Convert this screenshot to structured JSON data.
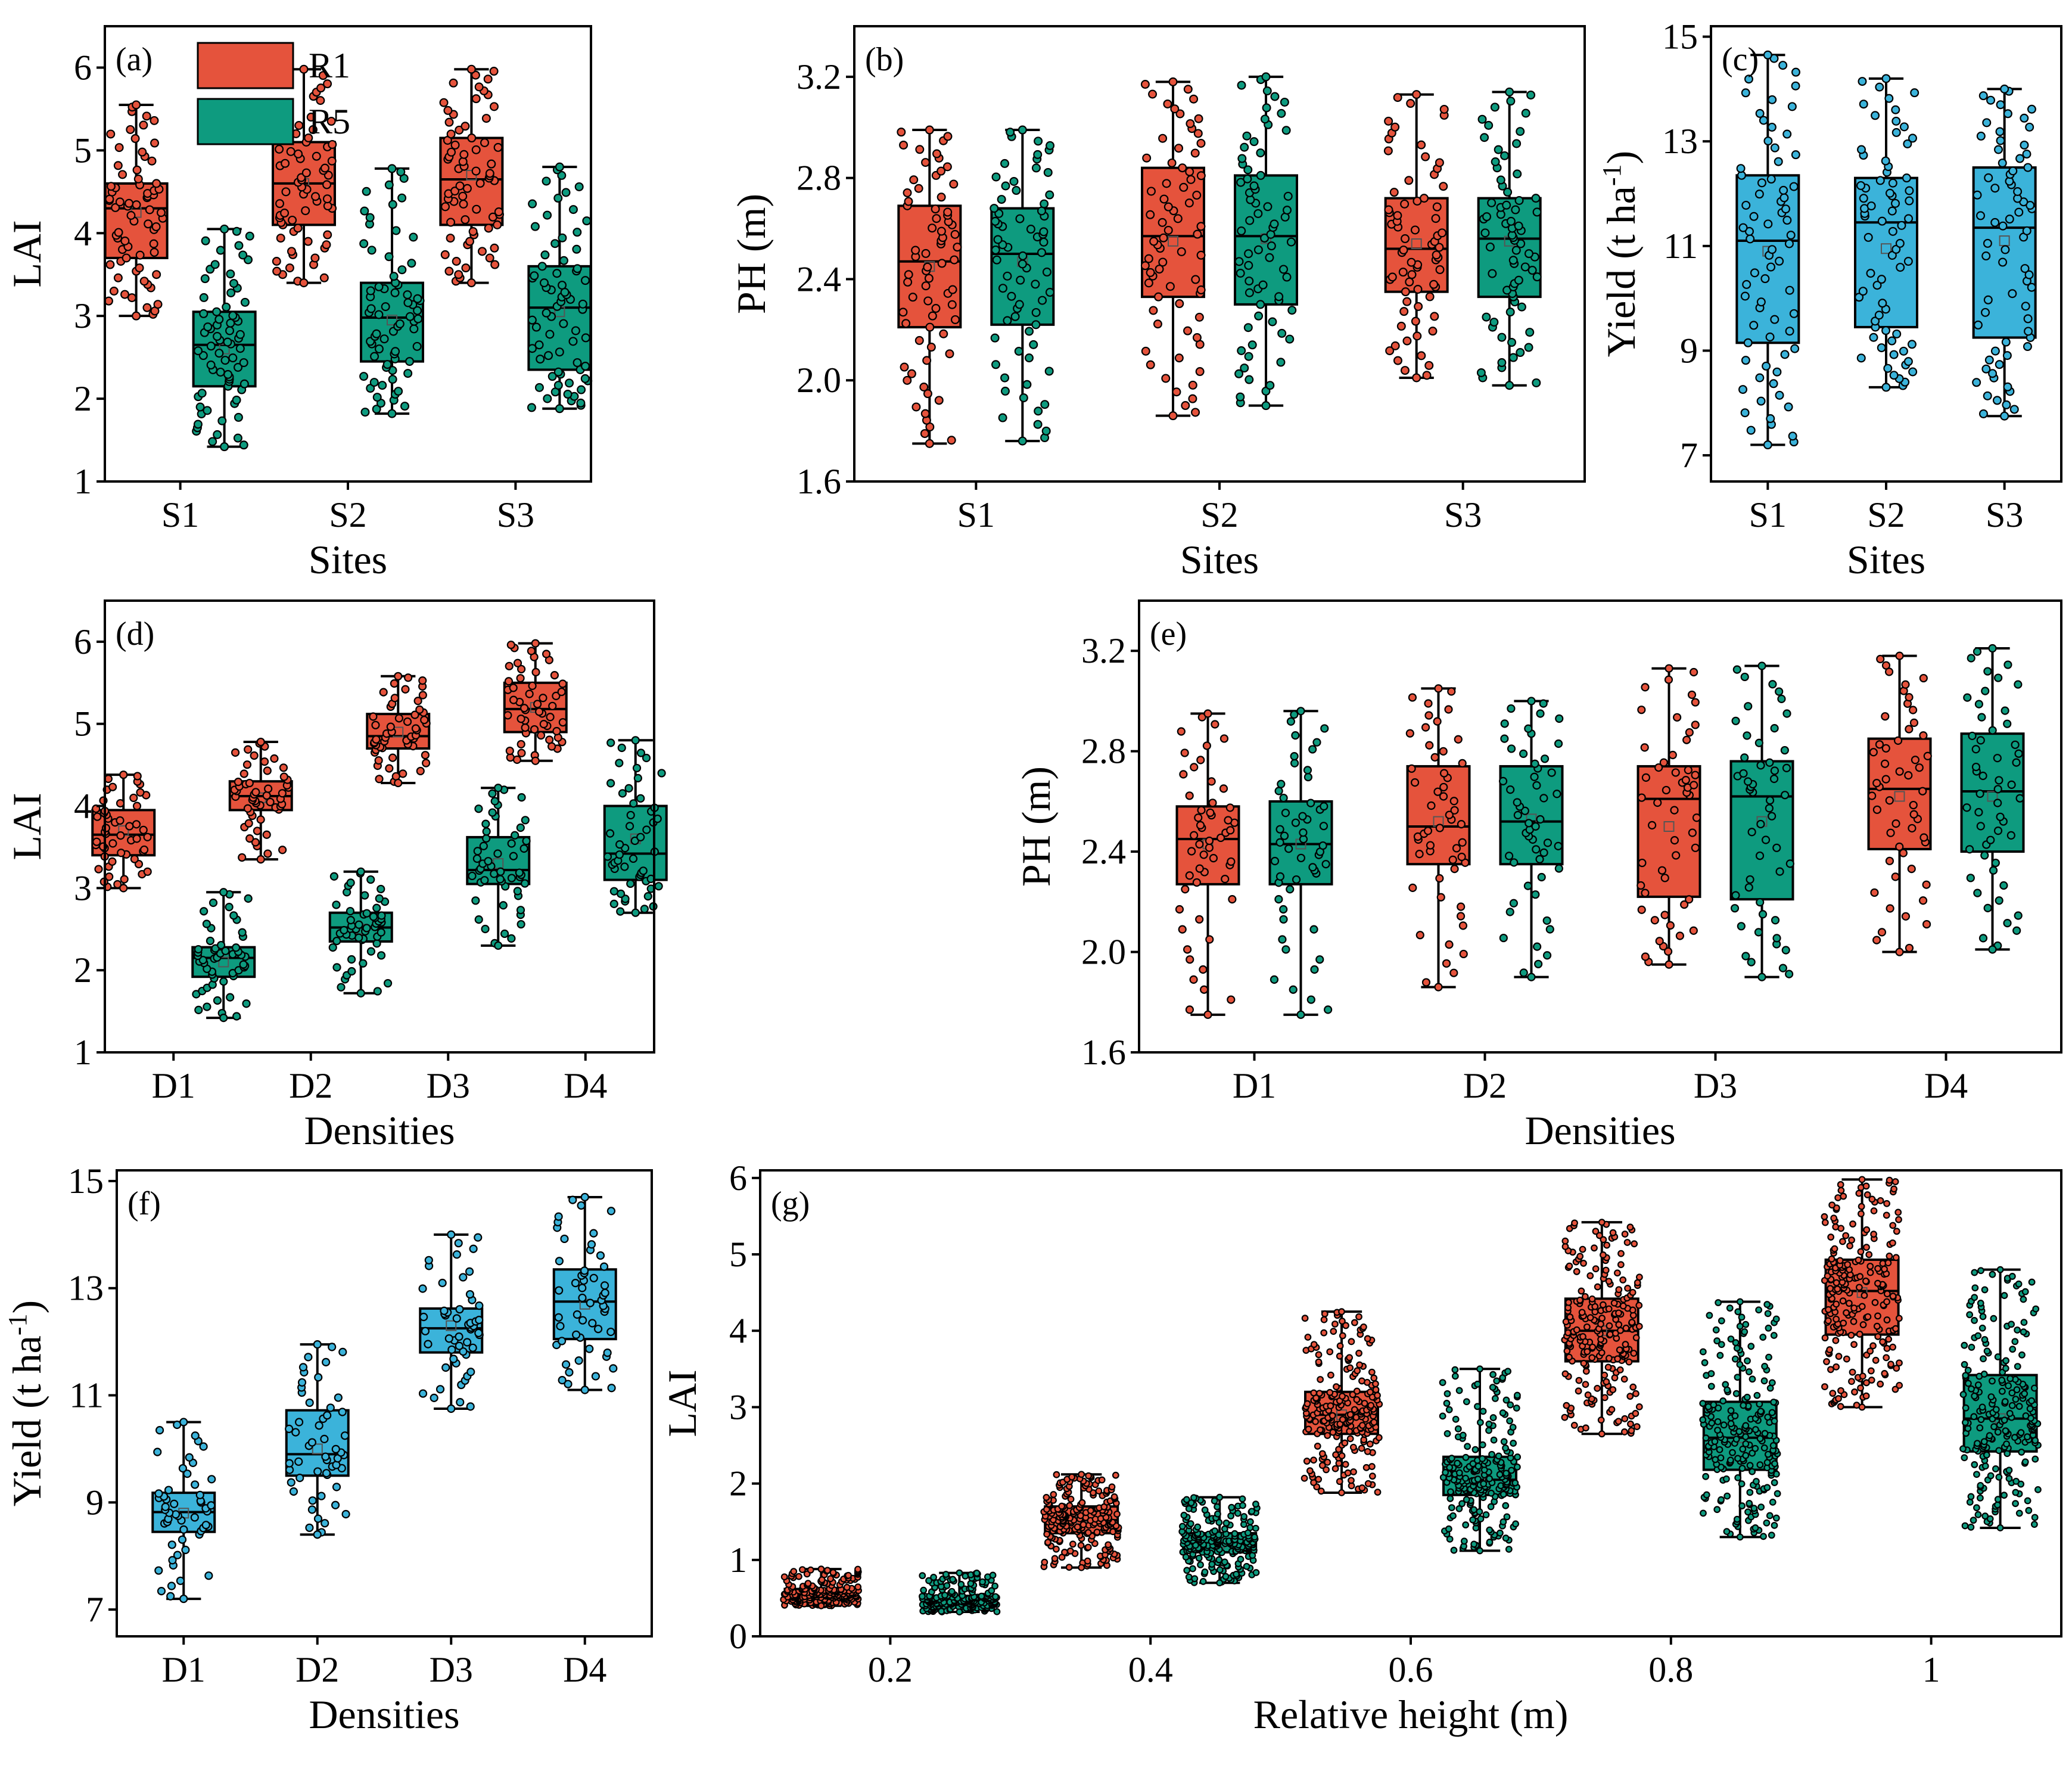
{
  "colors": {
    "R1": "#E5533C",
    "R5": "#0E9B7F",
    "yield": "#3BB3DA",
    "frame": "#000000"
  },
  "legend": {
    "items": [
      {
        "label": "R1",
        "color": "#E5533C"
      },
      {
        "label": "R5",
        "color": "#0E9B7F"
      }
    ]
  },
  "chart_data": [
    {
      "id": "a",
      "panel_label": "(a)",
      "type": "box",
      "xlabel": "Sites",
      "ylabel": "LAI",
      "ylim": [
        1,
        6.5
      ],
      "yticks": [
        1,
        2,
        3,
        4,
        5,
        6
      ],
      "ytick_labels": [
        "1",
        "2",
        "3",
        "4",
        "5",
        "6"
      ],
      "categories": [
        "S1",
        "S2",
        "S3"
      ],
      "n_points": 70,
      "series": [
        {
          "name": "R1",
          "color": "#E5533C",
          "stats": [
            {
              "min": 3.0,
              "q1": 3.7,
              "median": 4.3,
              "mean": 4.25,
              "q3": 4.6,
              "max": 5.55
            },
            {
              "min": 3.4,
              "q1": 4.1,
              "median": 4.6,
              "mean": 4.6,
              "q3": 5.1,
              "max": 5.98
            },
            {
              "min": 3.4,
              "q1": 4.1,
              "median": 4.65,
              "mean": 4.7,
              "q3": 5.15,
              "max": 5.98
            }
          ]
        },
        {
          "name": "R5",
          "color": "#0E9B7F",
          "stats": [
            {
              "min": 1.42,
              "q1": 2.15,
              "median": 2.65,
              "mean": 2.6,
              "q3": 3.05,
              "max": 4.05
            },
            {
              "min": 1.82,
              "q1": 2.45,
              "median": 2.98,
              "mean": 2.95,
              "q3": 3.4,
              "max": 4.78
            },
            {
              "min": 1.88,
              "q1": 2.35,
              "median": 3.1,
              "mean": 3.05,
              "q3": 3.6,
              "max": 4.8
            }
          ]
        }
      ]
    },
    {
      "id": "b",
      "panel_label": "(b)",
      "type": "box",
      "xlabel": "Sites",
      "ylabel": "PH (m)",
      "ylim": [
        1.6,
        3.4
      ],
      "yticks": [
        1.6,
        2.0,
        2.4,
        2.8,
        3.2
      ],
      "ytick_labels": [
        "1.6",
        "2.0",
        "2.4",
        "2.8",
        "3.2"
      ],
      "categories": [
        "S1",
        "S2",
        "S3"
      ],
      "n_points": 70,
      "series": [
        {
          "name": "R1",
          "color": "#E5533C",
          "stats": [
            {
              "min": 1.75,
              "q1": 2.21,
              "median": 2.47,
              "mean": 2.45,
              "q3": 2.69,
              "max": 2.99
            },
            {
              "min": 1.86,
              "q1": 2.33,
              "median": 2.57,
              "mean": 2.55,
              "q3": 2.84,
              "max": 3.18
            },
            {
              "min": 2.01,
              "q1": 2.35,
              "median": 2.52,
              "mean": 2.54,
              "q3": 2.72,
              "max": 3.13
            }
          ]
        },
        {
          "name": "R5",
          "color": "#0E9B7F",
          "stats": [
            {
              "min": 1.76,
              "q1": 2.22,
              "median": 2.5,
              "mean": 2.47,
              "q3": 2.68,
              "max": 2.99
            },
            {
              "min": 1.9,
              "q1": 2.3,
              "median": 2.57,
              "mean": 2.56,
              "q3": 2.81,
              "max": 3.2
            },
            {
              "min": 1.98,
              "q1": 2.33,
              "median": 2.56,
              "mean": 2.55,
              "q3": 2.72,
              "max": 3.14
            }
          ]
        }
      ]
    },
    {
      "id": "c",
      "panel_label": "(c)",
      "type": "box",
      "xlabel": "Sites",
      "ylabel": "Yield (t ha",
      "ylabel_sup": "-1",
      "ylabel_end": ")",
      "ylim": [
        6.5,
        15.2
      ],
      "yticks": [
        7,
        9,
        11,
        13,
        15
      ],
      "ytick_labels": [
        "7",
        "9",
        "11",
        "13",
        "15"
      ],
      "categories": [
        "S1",
        "S2",
        "S3"
      ],
      "n_points": 70,
      "series": [
        {
          "name": "Yield",
          "color": "#3BB3DA",
          "stats": [
            {
              "min": 7.2,
              "q1": 9.15,
              "median": 11.1,
              "mean": 10.9,
              "q3": 12.35,
              "max": 14.65
            },
            {
              "min": 8.3,
              "q1": 9.45,
              "median": 11.45,
              "mean": 10.95,
              "q3": 12.3,
              "max": 14.2
            },
            {
              "min": 7.75,
              "q1": 9.25,
              "median": 11.35,
              "mean": 11.1,
              "q3": 12.5,
              "max": 14.0
            }
          ]
        }
      ]
    },
    {
      "id": "d",
      "panel_label": "(d)",
      "type": "box",
      "xlabel": "Densities",
      "ylabel": "LAI",
      "ylim": [
        1,
        6.5
      ],
      "yticks": [
        1,
        2,
        3,
        4,
        5,
        6
      ],
      "ytick_labels": [
        "1",
        "2",
        "3",
        "4",
        "5",
        "6"
      ],
      "categories": [
        "D1",
        "D2",
        "D3",
        "D4"
      ],
      "n_points": 52,
      "series": [
        {
          "name": "R1",
          "color": "#E5533C",
          "stats": [
            {
              "min": 3.0,
              "q1": 3.4,
              "median": 3.65,
              "mean": 3.7,
              "q3": 3.95,
              "max": 4.38
            },
            {
              "min": 3.35,
              "q1": 3.95,
              "median": 4.12,
              "mean": 4.1,
              "q3": 4.3,
              "max": 4.78
            },
            {
              "min": 4.28,
              "q1": 4.7,
              "median": 4.85,
              "mean": 4.9,
              "q3": 5.12,
              "max": 5.58
            },
            {
              "min": 4.55,
              "q1": 4.9,
              "median": 5.18,
              "mean": 5.2,
              "q3": 5.5,
              "max": 5.98
            }
          ]
        },
        {
          "name": "R5",
          "color": "#0E9B7F",
          "stats": [
            {
              "min": 1.42,
              "q1": 1.92,
              "median": 2.15,
              "mean": 2.1,
              "q3": 2.28,
              "max": 2.95
            },
            {
              "min": 1.72,
              "q1": 2.35,
              "median": 2.52,
              "mean": 2.5,
              "q3": 2.7,
              "max": 3.2
            },
            {
              "min": 2.3,
              "q1": 3.05,
              "median": 3.22,
              "mean": 3.3,
              "q3": 3.62,
              "max": 4.22
            },
            {
              "min": 2.7,
              "q1": 3.1,
              "median": 3.42,
              "mean": 3.6,
              "q3": 4.0,
              "max": 4.8
            }
          ]
        }
      ]
    },
    {
      "id": "e",
      "panel_label": "(e)",
      "type": "box",
      "xlabel": "Densities",
      "ylabel": "PH (m)",
      "ylim": [
        1.6,
        3.4
      ],
      "yticks": [
        1.6,
        2.0,
        2.4,
        2.8,
        3.2
      ],
      "ytick_labels": [
        "1.6",
        "2.0",
        "2.4",
        "2.8",
        "3.2"
      ],
      "categories": [
        "D1",
        "D2",
        "D3",
        "D4"
      ],
      "n_points": 52,
      "series": [
        {
          "name": "R1",
          "color": "#E5533C",
          "stats": [
            {
              "min": 1.75,
              "q1": 2.27,
              "median": 2.45,
              "mean": 2.43,
              "q3": 2.58,
              "max": 2.95
            },
            {
              "min": 1.86,
              "q1": 2.35,
              "median": 2.5,
              "mean": 2.52,
              "q3": 2.74,
              "max": 3.05
            },
            {
              "min": 1.95,
              "q1": 2.22,
              "median": 2.61,
              "mean": 2.5,
              "q3": 2.74,
              "max": 3.13
            },
            {
              "min": 2.0,
              "q1": 2.41,
              "median": 2.65,
              "mean": 2.62,
              "q3": 2.85,
              "max": 3.18
            }
          ]
        },
        {
          "name": "R5",
          "color": "#0E9B7F",
          "stats": [
            {
              "min": 1.75,
              "q1": 2.27,
              "median": 2.43,
              "mean": 2.43,
              "q3": 2.6,
              "max": 2.96
            },
            {
              "min": 1.9,
              "q1": 2.35,
              "median": 2.52,
              "mean": 2.53,
              "q3": 2.74,
              "max": 3.0
            },
            {
              "min": 1.9,
              "q1": 2.21,
              "median": 2.62,
              "mean": 2.52,
              "q3": 2.76,
              "max": 3.14
            },
            {
              "min": 2.01,
              "q1": 2.4,
              "median": 2.64,
              "mean": 2.62,
              "q3": 2.87,
              "max": 3.21
            }
          ]
        }
      ]
    },
    {
      "id": "f",
      "panel_label": "(f)",
      "type": "box",
      "xlabel": "Densities",
      "ylabel": "Yield (t ha",
      "ylabel_sup": "-1",
      "ylabel_end": ")",
      "ylim": [
        6.5,
        15.2
      ],
      "yticks": [
        7,
        9,
        11,
        13,
        15
      ],
      "ytick_labels": [
        "7",
        "9",
        "11",
        "13",
        "15"
      ],
      "categories": [
        "D1",
        "D2",
        "D3",
        "D4"
      ],
      "n_points": 52,
      "series": [
        {
          "name": "Yield",
          "color": "#3BB3DA",
          "stats": [
            {
              "min": 7.2,
              "q1": 8.45,
              "median": 8.82,
              "mean": 8.8,
              "q3": 9.18,
              "max": 10.5
            },
            {
              "min": 8.4,
              "q1": 9.5,
              "median": 9.9,
              "mean": 10.0,
              "q3": 10.72,
              "max": 11.95
            },
            {
              "min": 10.75,
              "q1": 11.8,
              "median": 12.25,
              "mean": 12.3,
              "q3": 12.62,
              "max": 14.0
            },
            {
              "min": 11.1,
              "q1": 12.05,
              "median": 12.75,
              "mean": 12.7,
              "q3": 13.35,
              "max": 14.7
            }
          ]
        }
      ]
    },
    {
      "id": "g",
      "panel_label": "(g)",
      "type": "box",
      "xlabel": "Relative height (m)",
      "ylabel": "LAI",
      "ylim": [
        0,
        6.1
      ],
      "yticks": [
        0,
        1,
        2,
        3,
        4,
        5,
        6
      ],
      "ytick_labels": [
        "0",
        "1",
        "2",
        "3",
        "4",
        "5",
        "6"
      ],
      "categories": [
        "0.2",
        "0.4",
        "0.6",
        "0.8",
        "1"
      ],
      "n_points": 220,
      "series": [
        {
          "name": "R1",
          "color": "#E5533C",
          "stats": [
            {
              "min": 0.4,
              "q1": 0.5,
              "median": 0.55,
              "mean": 0.56,
              "q3": 0.62,
              "max": 0.88
            },
            {
              "min": 0.9,
              "q1": 1.35,
              "median": 1.52,
              "mean": 1.52,
              "q3": 1.7,
              "max": 2.12
            },
            {
              "min": 1.88,
              "q1": 2.65,
              "median": 2.9,
              "mean": 2.9,
              "q3": 3.2,
              "max": 4.25
            },
            {
              "min": 2.65,
              "q1": 3.6,
              "median": 4.0,
              "mean": 4.0,
              "q3": 4.42,
              "max": 5.42
            },
            {
              "min": 3.0,
              "q1": 3.95,
              "median": 4.52,
              "mean": 4.5,
              "q3": 4.93,
              "max": 5.98
            }
          ]
        },
        {
          "name": "R5",
          "color": "#0E9B7F",
          "stats": [
            {
              "min": 0.32,
              "q1": 0.42,
              "median": 0.47,
              "mean": 0.47,
              "q3": 0.53,
              "max": 0.83
            },
            {
              "min": 0.7,
              "q1": 1.1,
              "median": 1.22,
              "mean": 1.22,
              "q3": 1.35,
              "max": 1.82
            },
            {
              "min": 1.12,
              "q1": 1.85,
              "median": 2.05,
              "mean": 2.07,
              "q3": 2.35,
              "max": 3.5
            },
            {
              "min": 1.3,
              "q1": 2.18,
              "median": 2.6,
              "mean": 2.6,
              "q3": 3.07,
              "max": 4.38
            },
            {
              "min": 1.42,
              "q1": 2.42,
              "median": 2.85,
              "mean": 2.85,
              "q3": 3.42,
              "max": 4.8
            }
          ]
        }
      ]
    }
  ]
}
